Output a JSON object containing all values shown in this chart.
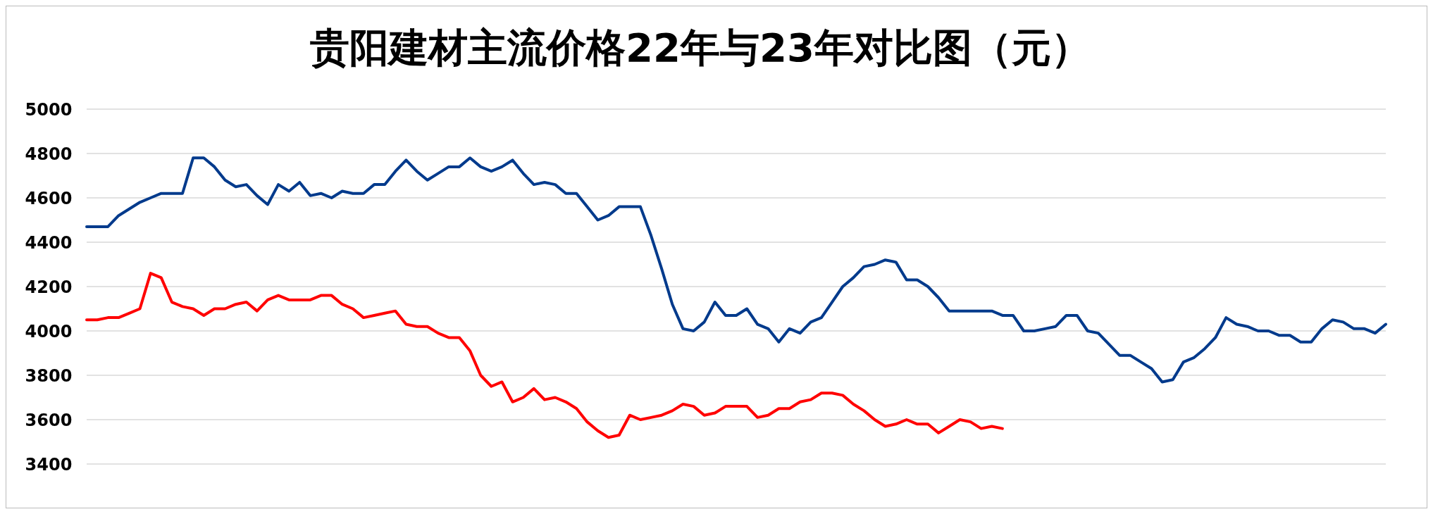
{
  "chart_data": {
    "type": "line",
    "title": "贵阳建材主流价格22年与23年对比图（元）",
    "categories": [
      null,
      null,
      null,
      null,
      null,
      null,
      null,
      null,
      null,
      null,
      null,
      null,
      null,
      null,
      null,
      null,
      null,
      null,
      null,
      null,
      null,
      null,
      null,
      null,
      null,
      null,
      null,
      null,
      null,
      null,
      null,
      null,
      null,
      null,
      null,
      null,
      null,
      null,
      null,
      null,
      null,
      null,
      null,
      null,
      null,
      null,
      null,
      null,
      null,
      null,
      null,
      null,
      null,
      null,
      null,
      null,
      null,
      null,
      null,
      null,
      null,
      null,
      null,
      null,
      null,
      null,
      null,
      null,
      null,
      null,
      null,
      null,
      null,
      null,
      null,
      null,
      null,
      null,
      null,
      null,
      null,
      null,
      null,
      null,
      null,
      null,
      null,
      null,
      null,
      null,
      null,
      null,
      null,
      null,
      null,
      null,
      null,
      null,
      null,
      null,
      null,
      null,
      null,
      null,
      null,
      null,
      null,
      null,
      null,
      null,
      null,
      null,
      null,
      null,
      null,
      null,
      null,
      null,
      null,
      null,
      null,
      null,
      null
    ],
    "series": [
      {
        "color": "#003a8c",
        "values": [
          4470,
          4470,
          4470,
          4520,
          4550,
          4580,
          4600,
          4620,
          4620,
          4620,
          4780,
          4780,
          4740,
          4680,
          4650,
          4660,
          4610,
          4570,
          4660,
          4630,
          4670,
          4610,
          4620,
          4600,
          4630,
          4620,
          4620,
          4660,
          4660,
          4720,
          4770,
          4720,
          4680,
          4710,
          4740,
          4740,
          4780,
          4740,
          4720,
          4740,
          4770,
          4710,
          4660,
          4670,
          4660,
          4620,
          4620,
          4560,
          4500,
          4520,
          4560,
          4560,
          4560,
          4430,
          4280,
          4120,
          4010,
          4000,
          4040,
          4130,
          4070,
          4070,
          4100,
          4030,
          4010,
          3950,
          4010,
          3990,
          4040,
          4060,
          4130,
          4200,
          4240,
          4290,
          4300,
          4320,
          4310,
          4230,
          4230,
          4200,
          4150,
          4090,
          4090,
          4090,
          4090,
          4090,
          4070,
          4070,
          4000,
          4000,
          4010,
          4020,
          4070,
          4070,
          4000,
          3990,
          3940,
          3890,
          3890,
          3860,
          3830,
          3770,
          3780,
          3860,
          3880,
          3920,
          3970,
          4060,
          4030,
          4020,
          4000,
          4000,
          3980,
          3980,
          3950,
          3950,
          4010,
          4050,
          4040,
          4010,
          4010,
          3990,
          4030
        ]
      },
      {
        "color": "#ff0000",
        "values": [
          4050,
          4050,
          4060,
          4060,
          4080,
          4100,
          4260,
          4240,
          4130,
          4110,
          4100,
          4070,
          4100,
          4100,
          4120,
          4130,
          4090,
          4140,
          4160,
          4140,
          4140,
          4140,
          4160,
          4160,
          4120,
          4100,
          4060,
          4070,
          4080,
          4090,
          4030,
          4020,
          4020,
          3990,
          3970,
          3970,
          3910,
          3800,
          3750,
          3770,
          3680,
          3700,
          3740,
          3690,
          3700,
          3680,
          3650,
          3590,
          3550,
          3520,
          3530,
          3620,
          3600,
          3610,
          3620,
          3640,
          3670,
          3660,
          3620,
          3630,
          3660,
          3660,
          3660,
          3610,
          3620,
          3650,
          3650,
          3680,
          3690,
          3720,
          3720,
          3710,
          3670,
          3640,
          3600,
          3570,
          3580,
          3600,
          3580,
          3580,
          3540,
          3570,
          3600,
          3590,
          3560,
          3570,
          3560,
          null,
          null,
          null,
          null,
          null,
          null,
          null,
          null,
          null,
          null,
          null,
          null,
          null,
          null,
          null,
          null,
          null,
          null,
          null,
          null,
          null,
          null,
          null,
          null,
          null,
          null,
          null,
          null,
          null,
          null,
          null,
          null,
          null,
          null,
          null,
          null
        ]
      }
    ],
    "ylim": [
      3400,
      5000
    ],
    "yticks": [
      3400,
      3600,
      3800,
      4000,
      4200,
      4400,
      4600,
      4800,
      5000
    ],
    "grid": "y",
    "legend": false,
    "tick_labels": "y",
    "marker": "none",
    "line_style": "solid"
  }
}
